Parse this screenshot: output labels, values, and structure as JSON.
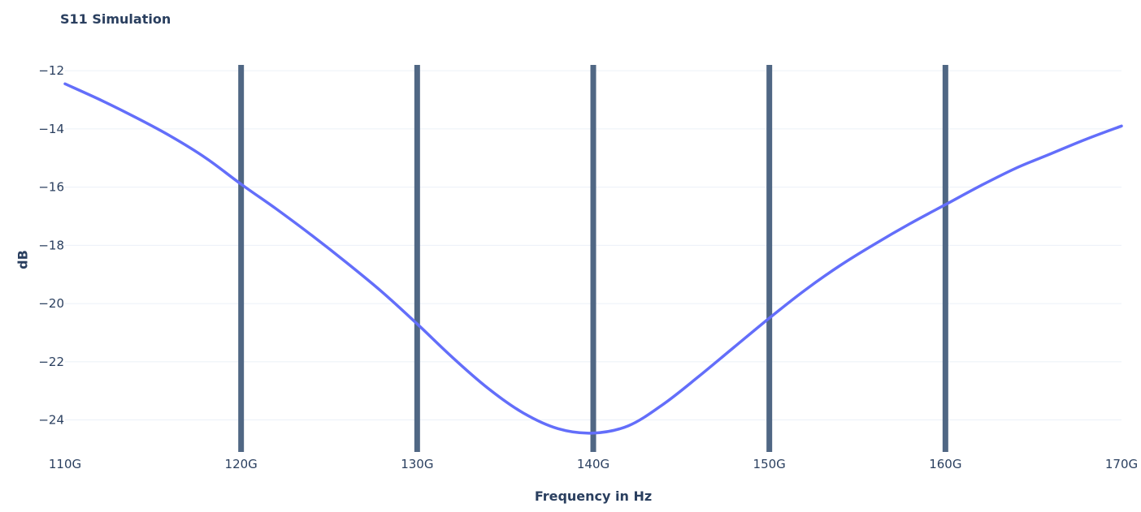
{
  "chart_data": {
    "type": "line",
    "title": "S11 Simulation",
    "xlabel": "Frequency in Hz",
    "ylabel": "dB",
    "xlim": [
      110,
      170
    ],
    "ylim": [
      -25.1,
      -11.8
    ],
    "x_ticks": [
      110,
      120,
      130,
      140,
      150,
      160,
      170
    ],
    "x_tick_labels": [
      "110G",
      "120G",
      "130G",
      "140G",
      "150G",
      "160G",
      "170G"
    ],
    "y_ticks": [
      -24,
      -22,
      -20,
      -18,
      -16,
      -14,
      -12
    ],
    "y_tick_labels": [
      "−24",
      "−22",
      "−20",
      "−18",
      "−16",
      "−14",
      "−12"
    ],
    "grid": true,
    "marker_lines_x": [
      120,
      130,
      140,
      150,
      160
    ],
    "series": [
      {
        "x": [
          110,
          112,
          114,
          116,
          118,
          120,
          122,
          124,
          126,
          128,
          130,
          132,
          134,
          136,
          138,
          140,
          142,
          144,
          146,
          148,
          150,
          152,
          154,
          156,
          158,
          160,
          162,
          164,
          166,
          168,
          170
        ],
        "y": [
          -12.45,
          -13.0,
          -13.6,
          -14.25,
          -15.0,
          -15.9,
          -16.75,
          -17.65,
          -18.6,
          -19.6,
          -20.7,
          -21.85,
          -22.9,
          -23.75,
          -24.3,
          -24.45,
          -24.2,
          -23.45,
          -22.5,
          -21.5,
          -20.5,
          -19.55,
          -18.7,
          -17.95,
          -17.25,
          -16.6,
          -15.95,
          -15.35,
          -14.85,
          -14.35,
          -13.9
        ],
        "color": "#636efa"
      }
    ],
    "colors": {
      "line": "#636efa",
      "marker": "#506784",
      "grid": "#ebf0f8"
    }
  }
}
